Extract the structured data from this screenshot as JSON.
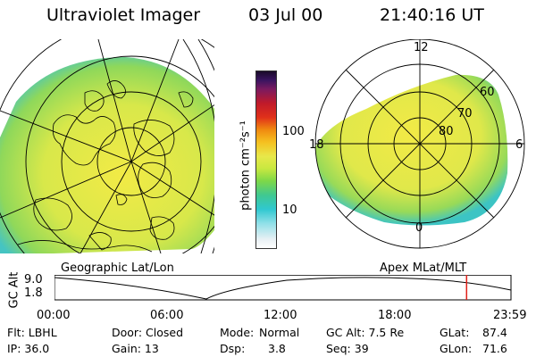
{
  "header": {
    "title": "Ultraviolet Imager",
    "date": "03 Jul 00",
    "time": "21:40:16 UT"
  },
  "colorbar": {
    "unit_label": "photon cm⁻²s⁻¹",
    "ticks": [
      "100",
      "10"
    ]
  },
  "polar_plot": {
    "labels": [
      "12",
      "18",
      "6",
      "0",
      "60",
      "70",
      "80"
    ]
  },
  "map_captions": {
    "left": "Geographic Lat/Lon",
    "right": "Apex MLat/MLT"
  },
  "orbit_plot": {
    "ylabel": "GC Alt",
    "yticks": [
      "9.0",
      "1.8"
    ],
    "xticks": [
      "00:00",
      "06:00",
      "12:00",
      "18:00",
      "23:59"
    ],
    "current_time_marker_fraction": 0.9027
  },
  "info": {
    "row1": [
      "Flt: LBHL",
      "Door: Closed",
      "Mode:",
      "Normal",
      "GC Alt: 7.5 Re",
      "GLat:",
      "87.4"
    ],
    "row2": [
      "IP: 36.0",
      "Gain: 13",
      "Dsp:",
      "3.8",
      "Seq: 39",
      "GLon:",
      "71.6"
    ]
  },
  "colors": {
    "marker": "#e0201a",
    "fill_main": "#e6e84a",
    "fill_edge": "#6fd46a",
    "fill_outer": "#39c0c8"
  }
}
